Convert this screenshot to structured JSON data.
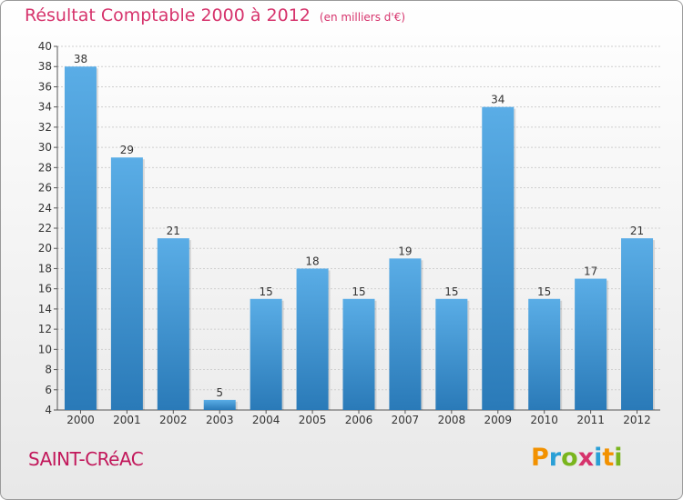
{
  "chart_data": {
    "type": "bar",
    "title": "Résultat Comptable 2000 à 2012",
    "subtitle": "(en milliers d'€)",
    "categories": [
      "2000",
      "2001",
      "2002",
      "2003",
      "2004",
      "2005",
      "2006",
      "2007",
      "2008",
      "2009",
      "2010",
      "2011",
      "2012"
    ],
    "values": [
      38,
      29,
      21,
      5,
      15,
      18,
      15,
      19,
      15,
      34,
      15,
      17,
      21
    ],
    "ylim": [
      4,
      40
    ],
    "yticks": [
      4,
      6,
      8,
      10,
      12,
      14,
      16,
      18,
      20,
      22,
      24,
      26,
      28,
      30,
      32,
      34,
      36,
      38,
      40
    ],
    "grid": true,
    "bar_color_top": "#5aade6",
    "bar_color_bottom": "#2a7ab8"
  },
  "footer": {
    "commune": "SAINT-CRéAC",
    "brand_letters": [
      "P",
      "r",
      "o",
      "x",
      "i",
      "t",
      "i"
    ],
    "brand_colors": [
      "#f29100",
      "#2a9fd6",
      "#7ab51d",
      "#d6336c",
      "#2a9fd6",
      "#f29100",
      "#7ab51d"
    ]
  },
  "colors": {
    "title": "#d6336c",
    "commune": "#c2185b"
  }
}
